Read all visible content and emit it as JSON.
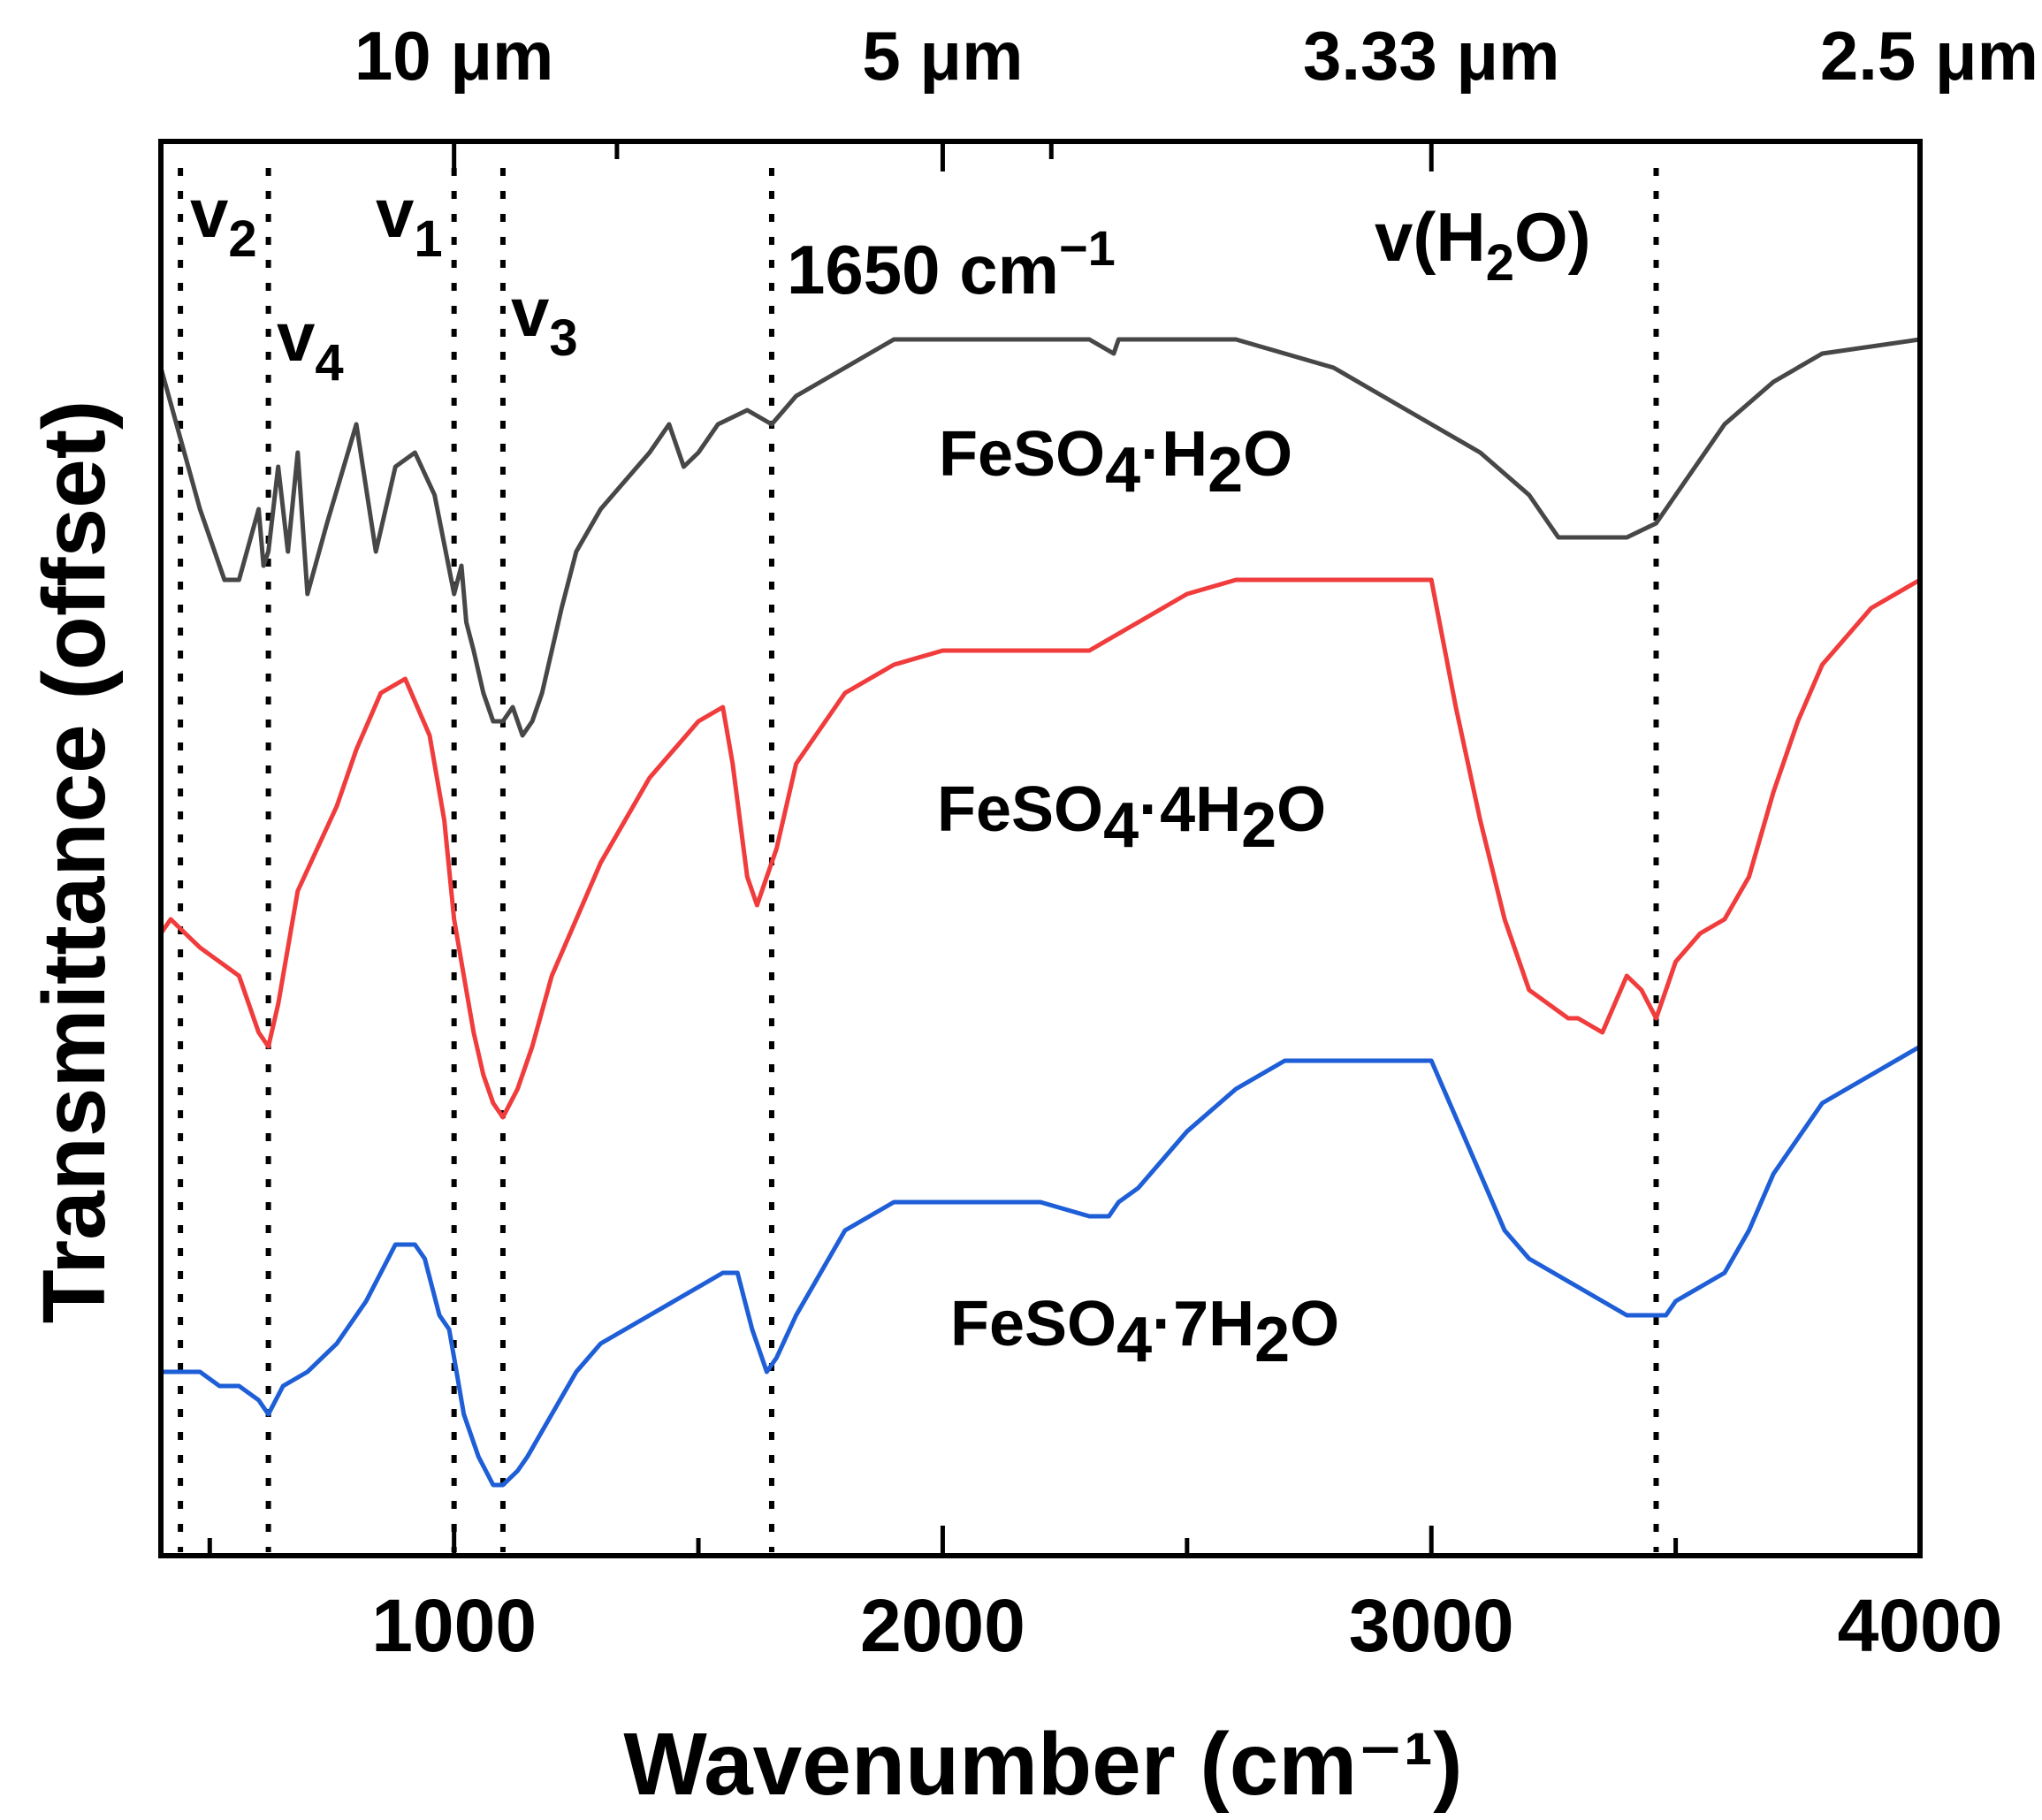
{
  "chart_data": {
    "type": "line",
    "title": "",
    "xlabel": "Wavenumber (cm⁻¹)",
    "ylabel": "Transmittance (offset)",
    "xlim": [
      400,
      4000
    ],
    "ylim": [
      0,
      100
    ],
    "x_ticks": [
      "1000",
      "2000",
      "3000",
      "4000"
    ],
    "x_tick_values": [
      1000,
      2000,
      3000,
      4000
    ],
    "top_axis": {
      "labels": [
        "10 μm",
        "5 μm",
        "3.33 μm",
        "2.5 μm"
      ],
      "wavenumbers": [
        1000,
        2000,
        3000,
        4000
      ]
    },
    "reference_lines": [
      {
        "x": 440,
        "label_main": "v",
        "label_sub": "2"
      },
      {
        "x": 620,
        "label_main": "v",
        "label_sub": "4"
      },
      {
        "x": 1000,
        "label_main": "v",
        "label_sub": "1"
      },
      {
        "x": 1100,
        "label_main": "v",
        "label_sub": "3"
      },
      {
        "x": 1650,
        "label_main": "1650 cm",
        "label_sup": "−1"
      },
      {
        "x": 3460,
        "label_main": "v(H",
        "label_sub": "2",
        "label_tail": "O)"
      }
    ],
    "series": [
      {
        "name": "FeSO4·H2O",
        "label_parts": [
          "FeSO",
          "4",
          "·H",
          "2",
          "O"
        ],
        "color": "#474747",
        "x": [
          400,
          440,
          480,
          530,
          560,
          600,
          610,
          620,
          640,
          660,
          680,
          700,
          740,
          800,
          840,
          880,
          920,
          960,
          1000,
          1015,
          1025,
          1040,
          1060,
          1080,
          1100,
          1120,
          1140,
          1160,
          1180,
          1220,
          1250,
          1300,
          1350,
          1400,
          1440,
          1470,
          1500,
          1540,
          1600,
          1650,
          1700,
          1750,
          1800,
          1850,
          1900,
          2000,
          2100,
          2200,
          2300,
          2350,
          2360,
          2400,
          2500,
          2600,
          2700,
          2800,
          2900,
          3000,
          3100,
          3200,
          3260,
          3300,
          3400,
          3460,
          3500,
          3600,
          3700,
          3800,
          4000
        ],
        "values": [
          84,
          79,
          74,
          69,
          69,
          74,
          70,
          71,
          77,
          71,
          78,
          68,
          73,
          80,
          71,
          77,
          78,
          75,
          68,
          70,
          66,
          64,
          61,
          59,
          59,
          60,
          58,
          59,
          61,
          67,
          71,
          74,
          76,
          78,
          80,
          77,
          78,
          80,
          81,
          80,
          82,
          83,
          84,
          85,
          86,
          86,
          86,
          86,
          86,
          85,
          86,
          86,
          86,
          86,
          85,
          84,
          82,
          80,
          78,
          75,
          72,
          72,
          72,
          73,
          75,
          80,
          83,
          85,
          86
        ]
      },
      {
        "name": "FeSO4·4H2O",
        "label_parts": [
          "FeSO",
          "4",
          "·4H",
          "2",
          "O"
        ],
        "color": "#f03c3c",
        "x": [
          400,
          420,
          450,
          480,
          520,
          560,
          600,
          620,
          640,
          680,
          720,
          760,
          800,
          850,
          900,
          950,
          980,
          1000,
          1020,
          1040,
          1060,
          1080,
          1100,
          1130,
          1160,
          1200,
          1250,
          1300,
          1400,
          1500,
          1550,
          1570,
          1600,
          1620,
          1640,
          1660,
          1700,
          1800,
          1900,
          2000,
          2050,
          2100,
          2200,
          2300,
          2350,
          2400,
          2500,
          2600,
          2700,
          2800,
          2900,
          3000,
          3050,
          3100,
          3150,
          3200,
          3240,
          3280,
          3300,
          3350,
          3400,
          3430,
          3460,
          3480,
          3500,
          3550,
          3600,
          3650,
          3700,
          3750,
          3800,
          3900,
          4000
        ],
        "values": [
          44,
          45,
          44,
          43,
          42,
          41,
          37,
          36,
          39,
          47,
          50,
          53,
          57,
          61,
          62,
          58,
          52,
          45,
          41,
          37,
          34,
          32,
          31,
          33,
          36,
          41,
          45,
          49,
          55,
          59,
          60,
          56,
          48,
          46,
          48,
          50,
          56,
          61,
          63,
          64,
          64,
          64,
          64,
          64,
          65,
          66,
          68,
          69,
          69,
          69,
          69,
          69,
          60,
          52,
          45,
          40,
          39,
          38,
          38,
          37,
          41,
          40,
          38,
          40,
          42,
          44,
          45,
          48,
          54,
          59,
          63,
          67,
          69
        ]
      },
      {
        "name": "FeSO4·7H2O",
        "label_parts": [
          "FeSO",
          "4",
          "·7H",
          "2",
          "O"
        ],
        "color": "#1e5ed6",
        "x": [
          400,
          440,
          480,
          520,
          560,
          600,
          620,
          650,
          700,
          760,
          820,
          880,
          920,
          940,
          970,
          990,
          1000,
          1020,
          1050,
          1080,
          1100,
          1130,
          1150,
          1200,
          1250,
          1300,
          1400,
          1500,
          1550,
          1580,
          1610,
          1640,
          1660,
          1700,
          1800,
          1900,
          2000,
          2100,
          2200,
          2300,
          2340,
          2360,
          2400,
          2500,
          2600,
          2700,
          2800,
          2900,
          3000,
          3050,
          3100,
          3150,
          3200,
          3250,
          3300,
          3350,
          3400,
          3440,
          3460,
          3480,
          3500,
          3550,
          3600,
          3650,
          3700,
          3800,
          3900,
          4000
        ],
        "values": [
          13,
          13,
          13,
          12,
          12,
          11,
          10,
          12,
          13,
          15,
          18,
          22,
          22,
          21,
          17,
          16,
          14,
          10,
          7,
          5,
          5,
          6,
          7,
          10,
          13,
          15,
          17,
          19,
          20,
          20,
          16,
          13,
          14,
          17,
          23,
          25,
          25,
          25,
          25,
          24,
          24,
          25,
          26,
          30,
          33,
          35,
          35,
          35,
          35,
          31,
          27,
          23,
          21,
          20,
          19,
          18,
          17,
          17,
          17,
          17,
          18,
          19,
          20,
          23,
          27,
          32,
          34,
          36
        ]
      }
    ]
  }
}
